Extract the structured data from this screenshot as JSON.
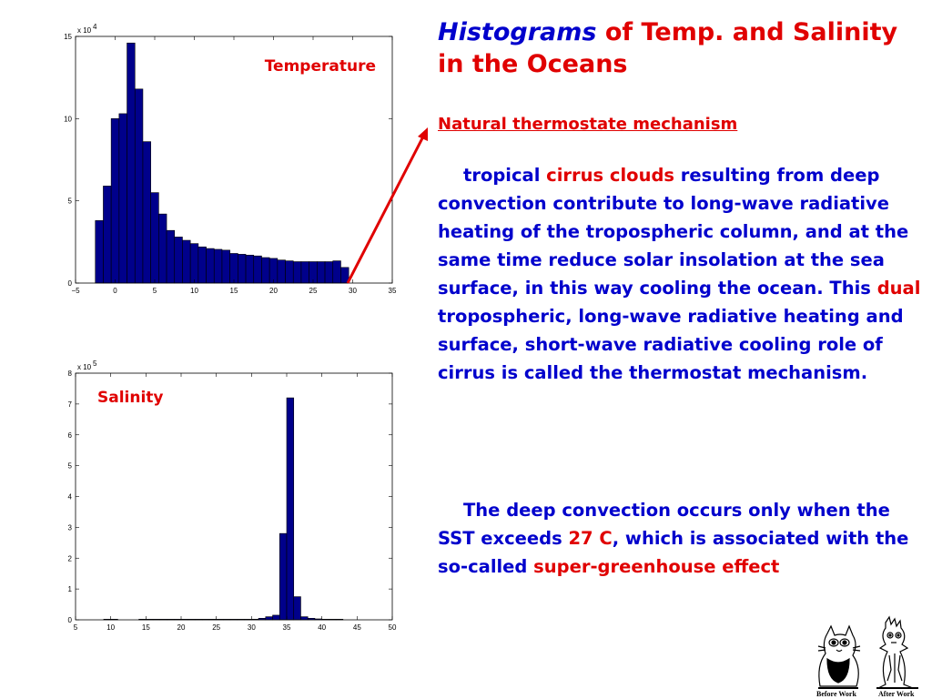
{
  "slide": {
    "title_italic": "Histograms",
    "title_rest": " of Temp. and Salinity in the Oceans",
    "subtitle": "Natural thermostate mechanism",
    "para1": {
      "s1": "tropical ",
      "s2": "cirrus clouds",
      "s3": " resulting from deep convection contribute to long-wave radiative heating of the tropospheric column, and at the same time reduce solar insolation at the sea surface, in this way cooling the ocean. This ",
      "s4": "dual",
      "s5": " tropospheric, long-wave radiative heating and surface, short-wave radiative cooling role of cirrus is called the thermostat mechanism."
    },
    "para2": {
      "s1": "The deep convection occurs only when the SST exceeds ",
      "s2": "27 C",
      "s3": ", which is associated with the so-called ",
      "s4": "super-greenhouse effect"
    },
    "cartoon": {
      "before_label": "Before Work",
      "after_label": "After Work",
      "icon": "cat-cartoon-icon"
    },
    "colors": {
      "bar_fill": "#00008b",
      "red_text": "#e00000",
      "blue_text": "#0000cc",
      "arrow": "#e00000"
    }
  },
  "chart_data": [
    {
      "type": "bar",
      "label": "Temperature",
      "multiplier_text": "x 10",
      "multiplier_exp": "4",
      "xlim": [
        -5,
        35
      ],
      "ylim": [
        0,
        15
      ],
      "xticks": [
        -5,
        0,
        5,
        10,
        15,
        20,
        25,
        30,
        35
      ],
      "yticks": [
        0,
        5,
        10,
        15
      ],
      "bin_width": 1,
      "bins_start": [
        -2.5,
        -1.5,
        -0.5,
        0.5,
        1.5,
        2.5,
        3.5,
        4.5,
        5.5,
        6.5,
        7.5,
        8.5,
        9.5,
        10.5,
        11.5,
        12.5,
        13.5,
        14.5,
        15.5,
        16.5,
        17.5,
        18.5,
        19.5,
        20.5,
        21.5,
        22.5,
        23.5,
        24.5,
        25.5,
        26.5,
        27.5,
        28.5
      ],
      "values": [
        3.8,
        5.9,
        10.0,
        10.3,
        14.6,
        11.8,
        8.6,
        5.5,
        4.2,
        3.2,
        2.8,
        2.6,
        2.4,
        2.2,
        2.1,
        2.05,
        2.0,
        1.8,
        1.75,
        1.7,
        1.65,
        1.55,
        1.5,
        1.4,
        1.35,
        1.3,
        1.3,
        1.3,
        1.3,
        1.3,
        1.35,
        0.95
      ]
    },
    {
      "type": "bar",
      "label": "Salinity",
      "multiplier_text": "x 10",
      "multiplier_exp": "5",
      "xlim": [
        5,
        50
      ],
      "ylim": [
        0,
        8
      ],
      "xticks": [
        5,
        10,
        15,
        20,
        25,
        30,
        35,
        40,
        45,
        50
      ],
      "yticks": [
        0,
        1,
        2,
        3,
        4,
        5,
        6,
        7,
        8
      ],
      "bin_width": 1,
      "bins_start": [
        9,
        10,
        14,
        15,
        16,
        17,
        18,
        19,
        20,
        21,
        22,
        23,
        24,
        25,
        26,
        27,
        28,
        29,
        30,
        31,
        32,
        33,
        34,
        35,
        36,
        37,
        38,
        39,
        40,
        41,
        42
      ],
      "values": [
        0.02,
        0.02,
        0.02,
        0.02,
        0.02,
        0.02,
        0.02,
        0.02,
        0.02,
        0.02,
        0.02,
        0.02,
        0.02,
        0.02,
        0.02,
        0.02,
        0.02,
        0.02,
        0.02,
        0.05,
        0.1,
        0.15,
        2.8,
        7.2,
        0.75,
        0.1,
        0.05,
        0.03,
        0.02,
        0.02,
        0.02
      ]
    }
  ]
}
